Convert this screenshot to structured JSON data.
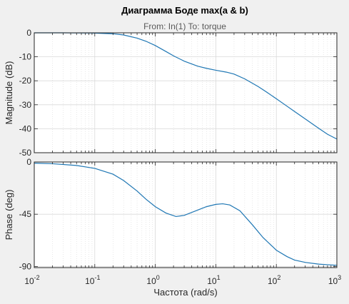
{
  "figure": {
    "title": "Диаграмма Боде max(a & b)",
    "subtitle": "From: In(1)  To: torque",
    "xlabel": "Частота  (rad/s)"
  },
  "colors": {
    "background": "#f0f0f0",
    "axes_background": "#ffffff",
    "line": "#1f77b4",
    "axis": "#262626",
    "grid": "#d9d9d9",
    "title": "#000000",
    "subtitle": "#595959"
  },
  "chart_data": [
    {
      "type": "line",
      "panel": "magnitude",
      "ylabel": "Magnitude (dB)",
      "xscale": "log",
      "xlim": [
        0.01,
        1000
      ],
      "ylim": [
        -50,
        0
      ],
      "yticks": [
        0,
        -10,
        -20,
        -30,
        -40,
        -50
      ],
      "ytick_labels": [
        "0",
        "-10",
        "-20",
        "-30",
        "-40",
        "-50"
      ],
      "grid": true,
      "series": [
        {
          "x": [
            0.01,
            0.03,
            0.1,
            0.2,
            0.3,
            0.5,
            0.7,
            1,
            1.5,
            2,
            3,
            5,
            7,
            10,
            15,
            20,
            30,
            50,
            70,
            100,
            150,
            200,
            300,
            500,
            700,
            1000
          ],
          "values": [
            0,
            0,
            -0.1,
            -0.4,
            -0.9,
            -2.2,
            -3.5,
            -5.3,
            -7.8,
            -9.6,
            -11.8,
            -13.9,
            -14.8,
            -15.6,
            -16.4,
            -17.2,
            -19.2,
            -22.4,
            -24.8,
            -27.5,
            -30.6,
            -32.8,
            -35.9,
            -39.8,
            -42.3,
            -44.3
          ]
        }
      ]
    },
    {
      "type": "line",
      "panel": "phase",
      "ylabel": "Phase (deg)",
      "xscale": "log",
      "xlim": [
        0.01,
        1000
      ],
      "ylim": [
        -91,
        0
      ],
      "yticks": [
        0,
        -45,
        -90
      ],
      "ytick_labels": [
        "0",
        "-45",
        "-90"
      ],
      "xticks": [
        0.01,
        0.1,
        1,
        10,
        100,
        1000
      ],
      "xtick_labels": [
        "10^-2",
        "10^-1",
        "10^0",
        "10^1",
        "10^2",
        "10^3"
      ],
      "grid": true,
      "series": [
        {
          "x": [
            0.01,
            0.02,
            0.05,
            0.1,
            0.2,
            0.3,
            0.5,
            0.7,
            1,
            1.5,
            2.2,
            3,
            5,
            7,
            10,
            13,
            17,
            25,
            40,
            60,
            100,
            150,
            200,
            300,
            500,
            700,
            1000
          ],
          "values": [
            -1,
            -1.5,
            -3,
            -5.5,
            -10.5,
            -16,
            -25,
            -32,
            -38.5,
            -44,
            -47,
            -46,
            -41.5,
            -38.5,
            -36.5,
            -36,
            -37,
            -42,
            -54,
            -65,
            -76,
            -81.5,
            -84.5,
            -86.5,
            -88,
            -88.5,
            -89
          ]
        }
      ]
    }
  ]
}
